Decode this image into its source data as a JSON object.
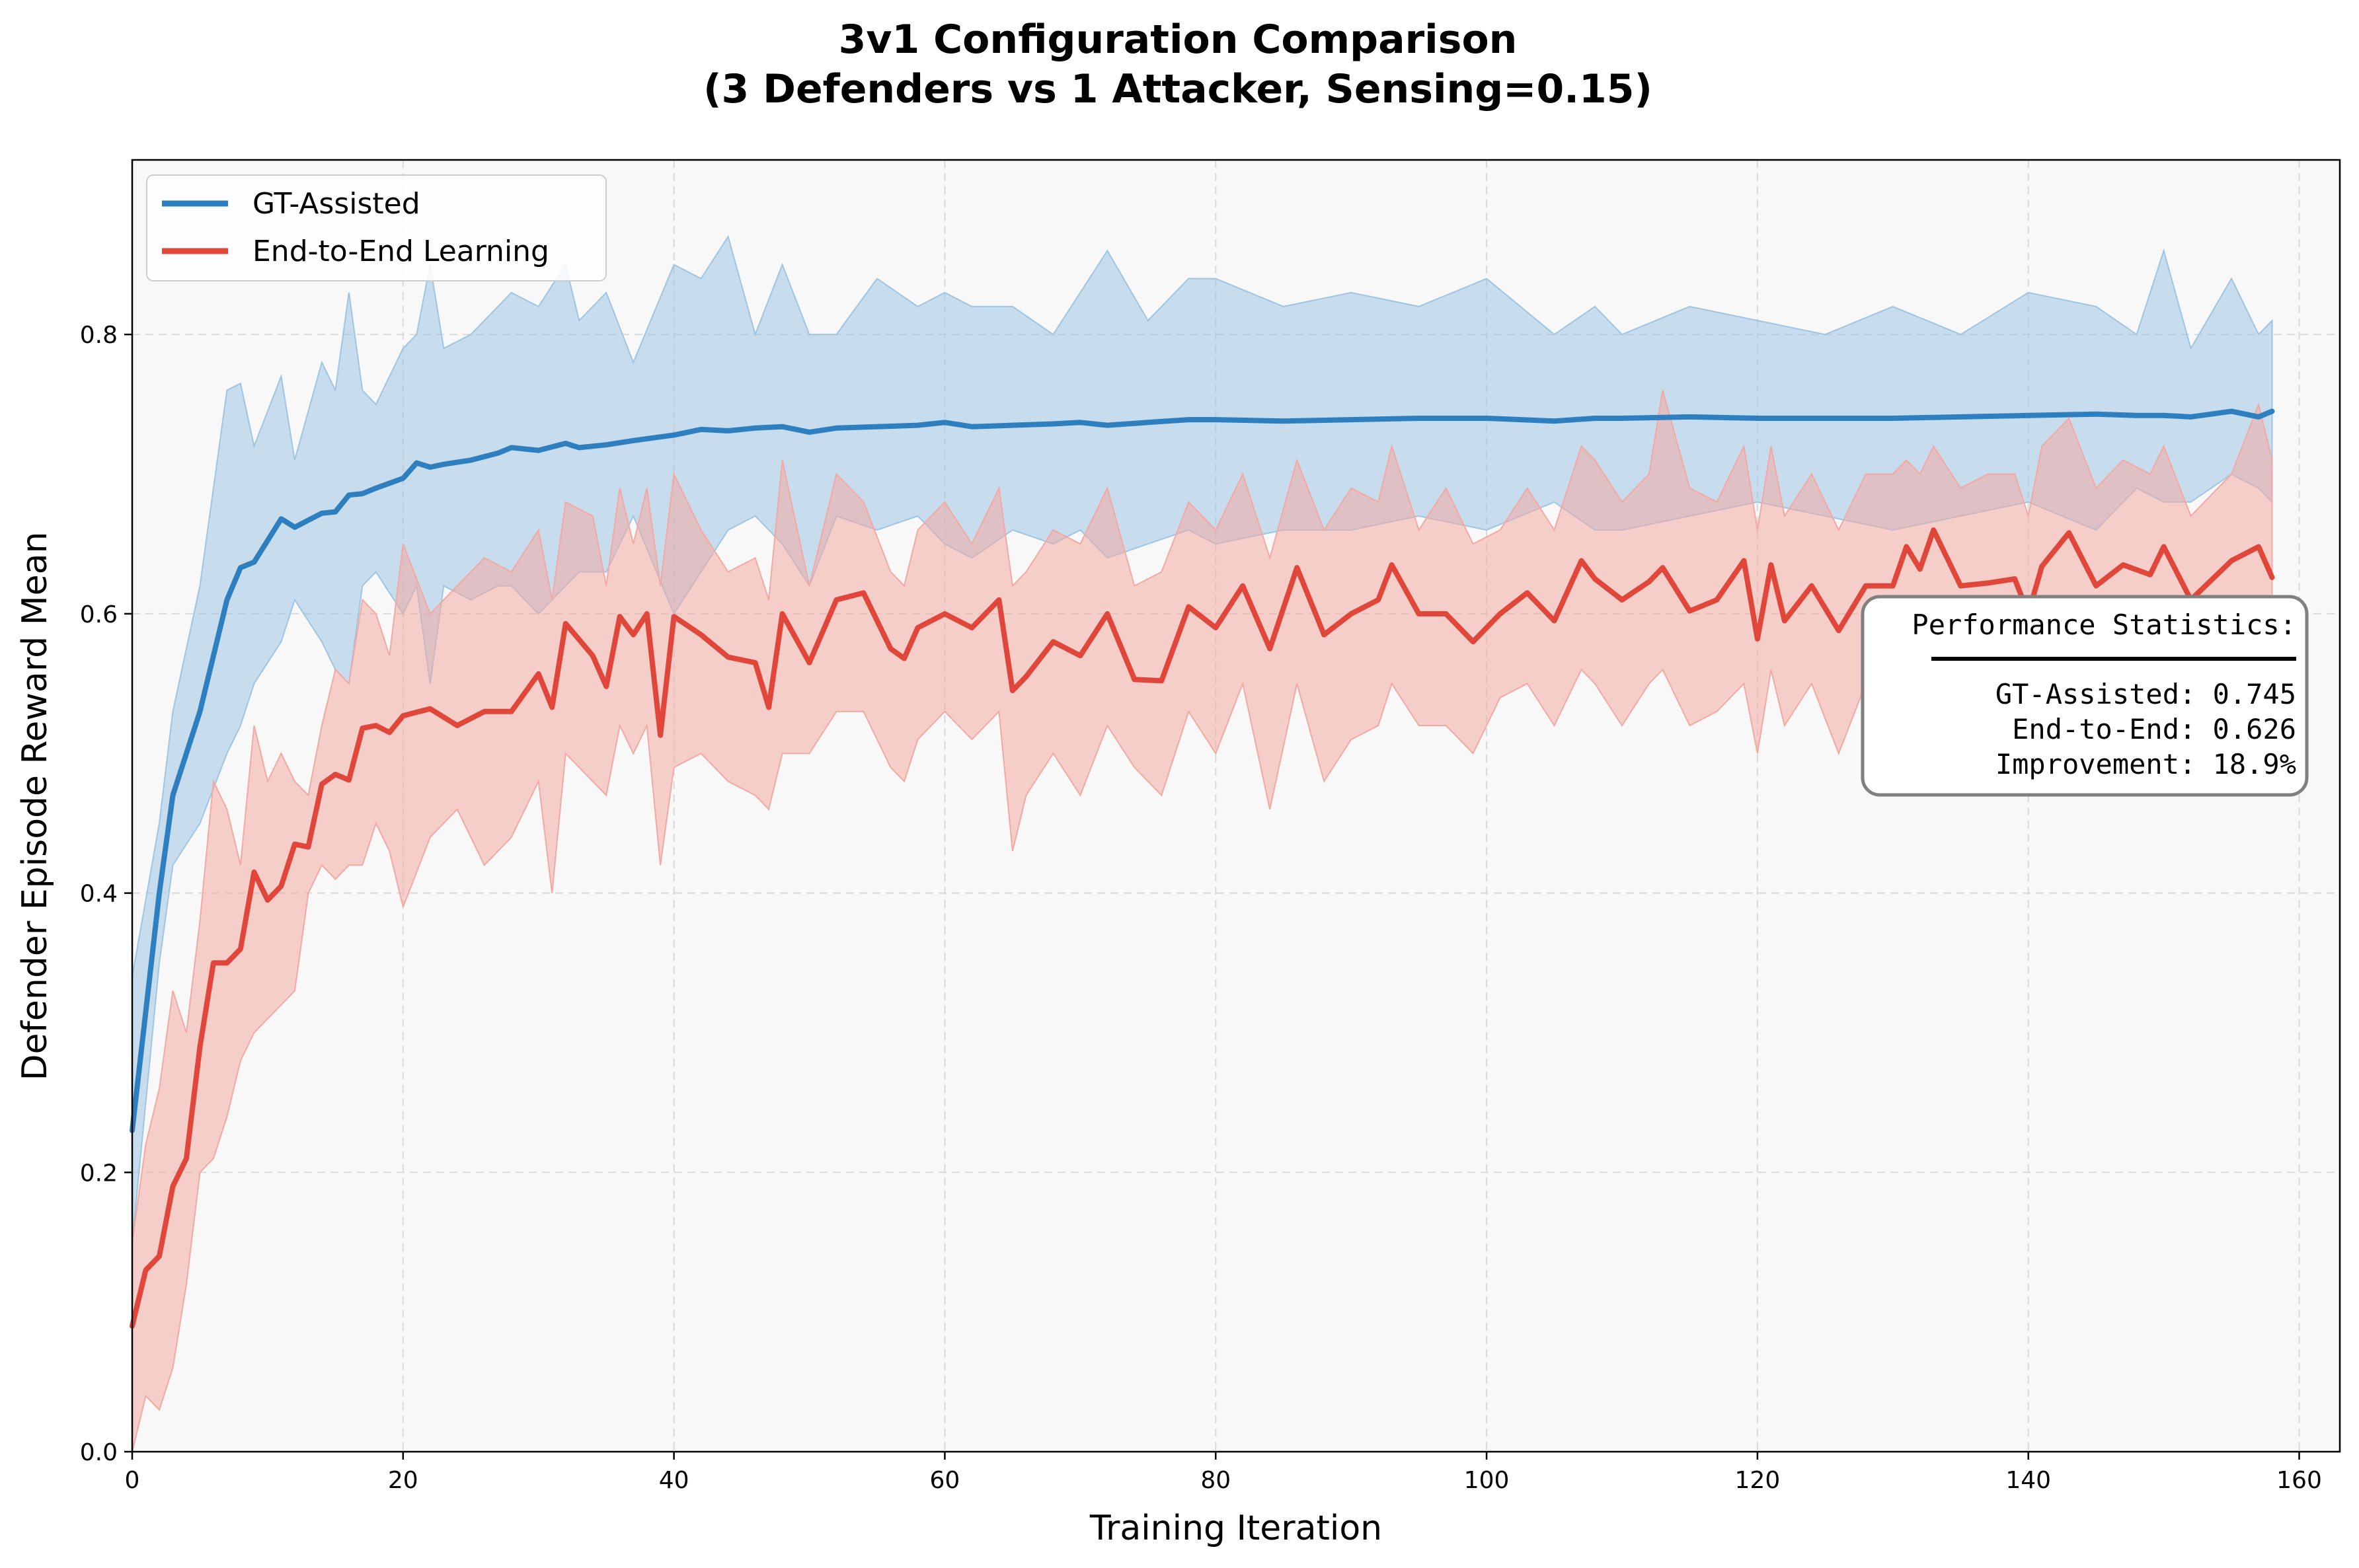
{
  "chart_data": {
    "type": "line",
    "title_line1": "3v1 Configuration Comparison",
    "title_line2": "(3 Defenders vs 1 Attacker, Sensing=0.15)",
    "xlabel": "Training Iteration",
    "ylabel": "Defender Episode Reward Mean",
    "xlim": [
      0,
      163
    ],
    "ylim": [
      0,
      0.925
    ],
    "xticks": [
      0,
      20,
      40,
      60,
      80,
      100,
      120,
      140,
      160
    ],
    "yticks": [
      0.0,
      0.2,
      0.4,
      0.6,
      0.8
    ],
    "grid": true,
    "legend_position": "top-left",
    "series": [
      {
        "name": "GT-Assisted",
        "color": "#2e7fbf",
        "band_color": "#9fc5e3",
        "x": [
          0,
          2,
          3,
          5,
          7,
          8,
          9,
          11,
          12,
          14,
          15,
          16,
          17,
          18,
          20,
          21,
          22,
          23,
          25,
          27,
          28,
          30,
          32,
          33,
          35,
          37,
          40,
          42,
          44,
          46,
          48,
          50,
          52,
          55,
          58,
          60,
          62,
          65,
          68,
          70,
          72,
          75,
          78,
          80,
          85,
          90,
          95,
          100,
          105,
          108,
          110,
          115,
          120,
          125,
          130,
          135,
          140,
          145,
          148,
          150,
          152,
          155,
          157,
          158
        ],
        "values": [
          0.23,
          0.4,
          0.47,
          0.53,
          0.61,
          0.633,
          0.637,
          0.668,
          0.662,
          0.672,
          0.673,
          0.685,
          0.686,
          0.69,
          0.697,
          0.708,
          0.705,
          0.707,
          0.71,
          0.715,
          0.719,
          0.717,
          0.722,
          0.719,
          0.721,
          0.724,
          0.728,
          0.732,
          0.731,
          0.733,
          0.734,
          0.73,
          0.733,
          0.734,
          0.735,
          0.737,
          0.734,
          0.735,
          0.736,
          0.737,
          0.735,
          0.737,
          0.739,
          0.739,
          0.738,
          0.739,
          0.74,
          0.74,
          0.738,
          0.74,
          0.74,
          0.741,
          0.74,
          0.74,
          0.74,
          0.741,
          0.742,
          0.743,
          0.742,
          0.742,
          0.741,
          0.745,
          0.741,
          0.745
        ],
        "upper": [
          0.34,
          0.45,
          0.53,
          0.62,
          0.76,
          0.765,
          0.72,
          0.77,
          0.71,
          0.78,
          0.76,
          0.83,
          0.76,
          0.75,
          0.79,
          0.8,
          0.85,
          0.79,
          0.8,
          0.82,
          0.83,
          0.82,
          0.85,
          0.81,
          0.83,
          0.78,
          0.85,
          0.84,
          0.87,
          0.8,
          0.85,
          0.8,
          0.8,
          0.84,
          0.82,
          0.83,
          0.82,
          0.82,
          0.8,
          0.83,
          0.86,
          0.81,
          0.84,
          0.84,
          0.82,
          0.83,
          0.82,
          0.84,
          0.8,
          0.82,
          0.8,
          0.82,
          0.81,
          0.8,
          0.82,
          0.8,
          0.83,
          0.82,
          0.8,
          0.86,
          0.79,
          0.84,
          0.8,
          0.81
        ],
        "lower": [
          0.15,
          0.35,
          0.42,
          0.45,
          0.5,
          0.52,
          0.55,
          0.58,
          0.61,
          0.58,
          0.56,
          0.55,
          0.62,
          0.63,
          0.6,
          0.62,
          0.55,
          0.62,
          0.61,
          0.62,
          0.62,
          0.6,
          0.62,
          0.63,
          0.63,
          0.67,
          0.6,
          0.63,
          0.66,
          0.67,
          0.65,
          0.62,
          0.67,
          0.66,
          0.67,
          0.65,
          0.64,
          0.66,
          0.65,
          0.66,
          0.64,
          0.65,
          0.66,
          0.65,
          0.66,
          0.66,
          0.67,
          0.66,
          0.68,
          0.66,
          0.66,
          0.67,
          0.68,
          0.67,
          0.66,
          0.67,
          0.68,
          0.66,
          0.69,
          0.68,
          0.68,
          0.7,
          0.69,
          0.68
        ]
      },
      {
        "name": "End-to-End Learning",
        "color": "#e0463a",
        "band_color": "#f3a9a3",
        "x": [
          0,
          1,
          2,
          3,
          4,
          5,
          6,
          7,
          8,
          9,
          10,
          11,
          12,
          13,
          14,
          15,
          16,
          17,
          18,
          19,
          20,
          22,
          24,
          26,
          28,
          30,
          31,
          32,
          34,
          35,
          36,
          37,
          38,
          39,
          40,
          42,
          44,
          46,
          47,
          48,
          50,
          52,
          54,
          56,
          57,
          58,
          60,
          62,
          64,
          65,
          66,
          68,
          70,
          72,
          74,
          76,
          78,
          80,
          82,
          84,
          86,
          88,
          90,
          92,
          93,
          95,
          97,
          99,
          101,
          103,
          105,
          107,
          108,
          110,
          112,
          113,
          115,
          117,
          119,
          120,
          121,
          122,
          124,
          126,
          128,
          130,
          131,
          132,
          133,
          135,
          137,
          139,
          140,
          141,
          143,
          145,
          147,
          149,
          150,
          152,
          155,
          157,
          158
        ],
        "values": [
          0.09,
          0.13,
          0.14,
          0.19,
          0.21,
          0.29,
          0.35,
          0.35,
          0.36,
          0.415,
          0.395,
          0.405,
          0.435,
          0.433,
          0.478,
          0.485,
          0.481,
          0.518,
          0.52,
          0.515,
          0.527,
          0.532,
          0.52,
          0.53,
          0.53,
          0.557,
          0.533,
          0.593,
          0.57,
          0.548,
          0.598,
          0.585,
          0.6,
          0.513,
          0.598,
          0.585,
          0.569,
          0.565,
          0.533,
          0.6,
          0.565,
          0.61,
          0.615,
          0.575,
          0.568,
          0.59,
          0.6,
          0.59,
          0.61,
          0.545,
          0.555,
          0.58,
          0.57,
          0.6,
          0.553,
          0.552,
          0.605,
          0.59,
          0.62,
          0.575,
          0.633,
          0.585,
          0.6,
          0.61,
          0.635,
          0.6,
          0.6,
          0.58,
          0.6,
          0.615,
          0.595,
          0.638,
          0.625,
          0.61,
          0.623,
          0.633,
          0.602,
          0.61,
          0.638,
          0.582,
          0.635,
          0.595,
          0.62,
          0.588,
          0.62,
          0.62,
          0.648,
          0.632,
          0.66,
          0.62,
          0.622,
          0.625,
          0.6,
          0.634,
          0.658,
          0.62,
          0.635,
          0.628,
          0.648,
          0.61,
          0.638,
          0.648,
          0.626
        ],
        "upper": [
          0.15,
          0.22,
          0.26,
          0.33,
          0.3,
          0.38,
          0.48,
          0.46,
          0.42,
          0.52,
          0.48,
          0.5,
          0.48,
          0.47,
          0.52,
          0.56,
          0.55,
          0.61,
          0.6,
          0.57,
          0.65,
          0.6,
          0.62,
          0.64,
          0.63,
          0.66,
          0.61,
          0.68,
          0.67,
          0.62,
          0.69,
          0.65,
          0.69,
          0.62,
          0.7,
          0.66,
          0.63,
          0.64,
          0.61,
          0.71,
          0.62,
          0.7,
          0.68,
          0.63,
          0.62,
          0.66,
          0.68,
          0.65,
          0.69,
          0.62,
          0.63,
          0.66,
          0.65,
          0.69,
          0.62,
          0.63,
          0.68,
          0.66,
          0.7,
          0.64,
          0.71,
          0.66,
          0.69,
          0.68,
          0.72,
          0.66,
          0.69,
          0.65,
          0.66,
          0.69,
          0.66,
          0.72,
          0.71,
          0.68,
          0.7,
          0.76,
          0.69,
          0.68,
          0.72,
          0.66,
          0.72,
          0.67,
          0.7,
          0.66,
          0.7,
          0.7,
          0.71,
          0.7,
          0.72,
          0.69,
          0.7,
          0.7,
          0.67,
          0.72,
          0.74,
          0.69,
          0.71,
          0.7,
          0.72,
          0.67,
          0.7,
          0.75,
          0.71
        ],
        "lower": [
          0.0,
          0.04,
          0.03,
          0.06,
          0.12,
          0.2,
          0.21,
          0.24,
          0.28,
          0.3,
          0.31,
          0.32,
          0.33,
          0.4,
          0.42,
          0.41,
          0.42,
          0.42,
          0.45,
          0.43,
          0.39,
          0.44,
          0.46,
          0.42,
          0.44,
          0.48,
          0.4,
          0.5,
          0.48,
          0.47,
          0.52,
          0.5,
          0.52,
          0.42,
          0.49,
          0.5,
          0.48,
          0.47,
          0.46,
          0.5,
          0.5,
          0.53,
          0.53,
          0.49,
          0.48,
          0.51,
          0.53,
          0.51,
          0.53,
          0.43,
          0.47,
          0.5,
          0.47,
          0.52,
          0.49,
          0.47,
          0.53,
          0.5,
          0.55,
          0.46,
          0.55,
          0.48,
          0.51,
          0.52,
          0.55,
          0.52,
          0.52,
          0.5,
          0.54,
          0.55,
          0.52,
          0.56,
          0.55,
          0.52,
          0.55,
          0.56,
          0.52,
          0.53,
          0.55,
          0.5,
          0.56,
          0.52,
          0.55,
          0.5,
          0.55,
          0.55,
          0.58,
          0.55,
          0.58,
          0.55,
          0.55,
          0.56,
          0.52,
          0.57,
          0.58,
          0.56,
          0.57,
          0.56,
          0.58,
          0.54,
          0.57,
          0.58,
          0.56
        ]
      }
    ]
  },
  "stats_box": {
    "title": "Performance Statistics:",
    "lines": [
      "GT-Assisted: 0.745",
      "End-to-End: 0.626",
      "Improvement: 18.9%"
    ]
  }
}
